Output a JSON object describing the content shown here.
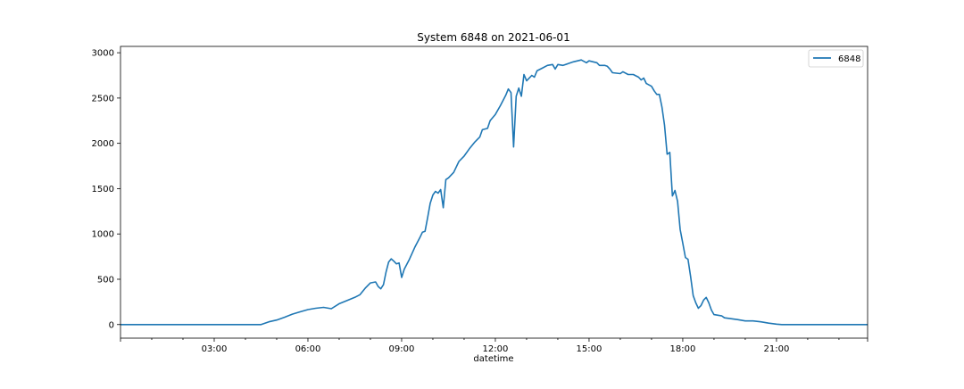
{
  "chart_data": {
    "type": "line",
    "title": "System 6848 on 2021-06-01",
    "xlabel": "datetime",
    "ylabel": "",
    "xlim": [
      "2021-06-01 00:00",
      "2021-06-01 23:55"
    ],
    "ylim": [
      -150,
      3070
    ],
    "grid": false,
    "legend": "top-right",
    "x_ticks": [
      "03:00",
      "06:00",
      "09:00",
      "12:00",
      "15:00",
      "18:00",
      "21:00"
    ],
    "y_ticks": [
      0,
      500,
      1000,
      1500,
      2000,
      2500,
      3000
    ],
    "series": [
      {
        "name": "6848",
        "color": "#1f77b4",
        "points": [
          [
            "00:00",
            0
          ],
          [
            "04:00",
            0
          ],
          [
            "04:30",
            0
          ],
          [
            "04:45",
            30
          ],
          [
            "05:00",
            50
          ],
          [
            "05:15",
            80
          ],
          [
            "05:30",
            115
          ],
          [
            "05:45",
            140
          ],
          [
            "06:00",
            165
          ],
          [
            "06:15",
            180
          ],
          [
            "06:30",
            190
          ],
          [
            "06:45",
            175
          ],
          [
            "07:00",
            230
          ],
          [
            "07:15",
            265
          ],
          [
            "07:30",
            300
          ],
          [
            "07:40",
            330
          ],
          [
            "07:50",
            400
          ],
          [
            "08:00",
            460
          ],
          [
            "08:10",
            470
          ],
          [
            "08:15",
            420
          ],
          [
            "08:20",
            395
          ],
          [
            "08:25",
            440
          ],
          [
            "08:30",
            580
          ],
          [
            "08:35",
            690
          ],
          [
            "08:40",
            725
          ],
          [
            "08:45",
            700
          ],
          [
            "08:50",
            670
          ],
          [
            "08:55",
            680
          ],
          [
            "09:00",
            520
          ],
          [
            "09:05",
            610
          ],
          [
            "09:15",
            720
          ],
          [
            "09:25",
            850
          ],
          [
            "09:35",
            960
          ],
          [
            "09:40",
            1020
          ],
          [
            "09:45",
            1030
          ],
          [
            "09:50",
            1180
          ],
          [
            "09:55",
            1340
          ],
          [
            "10:00",
            1430
          ],
          [
            "10:05",
            1470
          ],
          [
            "10:10",
            1450
          ],
          [
            "10:15",
            1490
          ],
          [
            "10:20",
            1290
          ],
          [
            "10:25",
            1600
          ],
          [
            "10:30",
            1620
          ],
          [
            "10:40",
            1680
          ],
          [
            "10:50",
            1800
          ],
          [
            "11:00",
            1860
          ],
          [
            "11:10",
            1940
          ],
          [
            "11:20",
            2010
          ],
          [
            "11:30",
            2070
          ],
          [
            "11:35",
            2150
          ],
          [
            "11:45",
            2165
          ],
          [
            "11:50",
            2250
          ],
          [
            "12:00",
            2320
          ],
          [
            "12:10",
            2420
          ],
          [
            "12:20",
            2530
          ],
          [
            "12:25",
            2600
          ],
          [
            "12:30",
            2560
          ],
          [
            "12:35",
            1960
          ],
          [
            "12:40",
            2520
          ],
          [
            "12:45",
            2610
          ],
          [
            "12:50",
            2520
          ],
          [
            "12:55",
            2760
          ],
          [
            "13:00",
            2690
          ],
          [
            "13:10",
            2750
          ],
          [
            "13:15",
            2730
          ],
          [
            "13:20",
            2800
          ],
          [
            "13:30",
            2830
          ],
          [
            "13:40",
            2860
          ],
          [
            "13:50",
            2870
          ],
          [
            "13:55",
            2820
          ],
          [
            "14:00",
            2870
          ],
          [
            "14:10",
            2860
          ],
          [
            "14:20",
            2880
          ],
          [
            "14:30",
            2900
          ],
          [
            "14:45",
            2920
          ],
          [
            "14:55",
            2890
          ],
          [
            "15:00",
            2910
          ],
          [
            "15:15",
            2890
          ],
          [
            "15:20",
            2860
          ],
          [
            "15:30",
            2860
          ],
          [
            "15:35",
            2850
          ],
          [
            "15:40",
            2820
          ],
          [
            "15:45",
            2780
          ],
          [
            "16:00",
            2770
          ],
          [
            "16:05",
            2790
          ],
          [
            "16:15",
            2760
          ],
          [
            "16:25",
            2760
          ],
          [
            "16:35",
            2730
          ],
          [
            "16:40",
            2700
          ],
          [
            "16:45",
            2720
          ],
          [
            "16:50",
            2660
          ],
          [
            "17:00",
            2630
          ],
          [
            "17:05",
            2580
          ],
          [
            "17:10",
            2540
          ],
          [
            "17:15",
            2540
          ],
          [
            "17:20",
            2400
          ],
          [
            "17:25",
            2200
          ],
          [
            "17:30",
            1880
          ],
          [
            "17:35",
            1900
          ],
          [
            "17:40",
            1420
          ],
          [
            "17:45",
            1480
          ],
          [
            "17:50",
            1360
          ],
          [
            "17:55",
            1050
          ],
          [
            "18:00",
            900
          ],
          [
            "18:05",
            740
          ],
          [
            "18:10",
            720
          ],
          [
            "18:15",
            530
          ],
          [
            "18:20",
            320
          ],
          [
            "18:25",
            240
          ],
          [
            "18:30",
            180
          ],
          [
            "18:35",
            210
          ],
          [
            "18:40",
            270
          ],
          [
            "18:45",
            300
          ],
          [
            "18:50",
            240
          ],
          [
            "18:55",
            160
          ],
          [
            "19:00",
            110
          ],
          [
            "19:15",
            95
          ],
          [
            "19:20",
            75
          ],
          [
            "19:45",
            55
          ],
          [
            "20:00",
            40
          ],
          [
            "20:15",
            40
          ],
          [
            "20:30",
            30
          ],
          [
            "20:45",
            15
          ],
          [
            "21:00",
            5
          ],
          [
            "21:10",
            0
          ],
          [
            "22:00",
            0
          ],
          [
            "23:55",
            0
          ]
        ]
      }
    ]
  }
}
